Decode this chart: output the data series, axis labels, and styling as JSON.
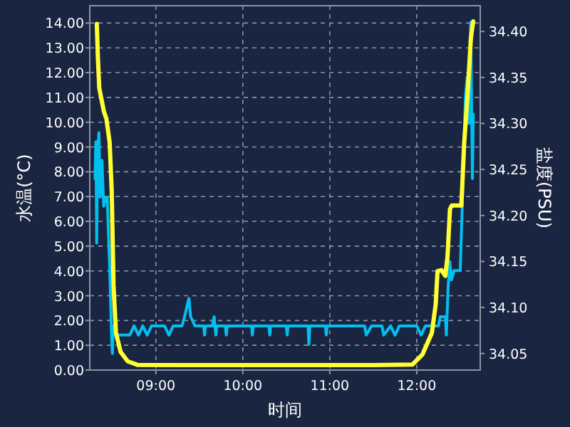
{
  "chart_data": {
    "type": "line",
    "xlabel": "时间",
    "ylabel": "水温(°C)",
    "y2label": "盐度(PSU)",
    "grid": true,
    "marker": "none",
    "line_style": "solid",
    "xlim": [
      8.24,
      12.73
    ],
    "xticks": [
      {
        "value": 9,
        "label": "09:00"
      },
      {
        "value": 10,
        "label": "10:00"
      },
      {
        "value": 11,
        "label": "11:00"
      },
      {
        "value": 12,
        "label": "12:00"
      }
    ],
    "ylim": [
      0,
      14.7
    ],
    "yticks": [
      {
        "value": 0,
        "label": "0.00"
      },
      {
        "value": 1,
        "label": "1.00"
      },
      {
        "value": 2,
        "label": "2.00"
      },
      {
        "value": 3,
        "label": "3.00"
      },
      {
        "value": 4,
        "label": "4.00"
      },
      {
        "value": 5,
        "label": "5.00"
      },
      {
        "value": 6,
        "label": "6.00"
      },
      {
        "value": 7,
        "label": "7.00"
      },
      {
        "value": 8,
        "label": "8.00"
      },
      {
        "value": 9,
        "label": "9.00"
      },
      {
        "value": 10,
        "label": "10.00"
      },
      {
        "value": 11,
        "label": "11.00"
      },
      {
        "value": 12,
        "label": "12.00"
      },
      {
        "value": 13,
        "label": "13.00"
      },
      {
        "value": 14,
        "label": "14.00"
      }
    ],
    "y2lim": [
      34.032,
      34.428
    ],
    "y2ticks": [
      {
        "value": 34.05,
        "label": "34.05"
      },
      {
        "value": 34.1,
        "label": "34.10"
      },
      {
        "value": 34.15,
        "label": "34.15"
      },
      {
        "value": 34.2,
        "label": "34.20"
      },
      {
        "value": 34.25,
        "label": "34.25"
      },
      {
        "value": 34.3,
        "label": "34.30"
      },
      {
        "value": 34.35,
        "label": "34.35"
      },
      {
        "value": 34.4,
        "label": "34.40"
      }
    ],
    "series": [
      {
        "color": "#00c0f0",
        "axis": "y2",
        "x": [
          8.3,
          8.31,
          8.32,
          8.33,
          8.345,
          8.36,
          8.38,
          8.4,
          8.42,
          8.44,
          8.47,
          8.49,
          8.5,
          8.51,
          8.53,
          8.6,
          8.7,
          8.75,
          8.8,
          8.85,
          8.9,
          8.95,
          9.1,
          9.15,
          9.2,
          9.3,
          9.33,
          9.38,
          9.4,
          9.45,
          9.55,
          9.56,
          9.57,
          9.65,
          9.67,
          9.69,
          9.7,
          9.8,
          9.81,
          9.82,
          10.1,
          10.11,
          10.12,
          10.3,
          10.31,
          10.32,
          10.5,
          10.51,
          10.52,
          10.75,
          10.76,
          10.77,
          10.95,
          10.96,
          10.97,
          11.4,
          11.42,
          11.48,
          11.6,
          11.62,
          11.7,
          11.75,
          11.8,
          12.0,
          12.05,
          12.1,
          12.25,
          12.27,
          12.33,
          12.34,
          12.36,
          12.38,
          12.4,
          12.43,
          12.5,
          12.52,
          12.56,
          12.58,
          12.6,
          12.62,
          12.64,
          12.65
        ],
        "values": [
          34.24,
          34.28,
          34.17,
          34.27,
          34.29,
          34.22,
          34.26,
          34.21,
          34.22,
          34.22,
          34.14,
          34.07,
          34.05,
          34.08,
          34.07,
          34.07,
          34.07,
          34.08,
          34.07,
          34.08,
          34.07,
          34.08,
          34.08,
          34.07,
          34.08,
          34.08,
          34.09,
          34.11,
          34.09,
          34.08,
          34.08,
          34.07,
          34.08,
          34.08,
          34.09,
          34.07,
          34.08,
          34.08,
          34.07,
          34.08,
          34.08,
          34.07,
          34.08,
          34.08,
          34.07,
          34.08,
          34.08,
          34.07,
          34.08,
          34.08,
          34.06,
          34.08,
          34.08,
          34.07,
          34.08,
          34.08,
          34.07,
          34.08,
          34.08,
          34.07,
          34.08,
          34.07,
          34.08,
          34.08,
          34.07,
          34.08,
          34.08,
          34.09,
          34.09,
          34.07,
          34.12,
          34.15,
          34.13,
          34.14,
          34.14,
          34.2,
          34.33,
          34.35,
          34.3,
          34.41,
          34.24,
          34.31
        ]
      },
      {
        "color": "#ffff33",
        "x": [
          8.321,
          8.333,
          8.349,
          8.403,
          8.431,
          8.469,
          8.492,
          8.513,
          8.541,
          8.595,
          8.677,
          8.787,
          9.5,
          10.5,
          11.5,
          11.95,
          12.066,
          12.174,
          12.218,
          12.239,
          12.284,
          12.328,
          12.354,
          12.382,
          12.403,
          12.513,
          12.546,
          12.584,
          12.623,
          12.649
        ],
        "values": [
          13.97,
          12.63,
          11.38,
          10.42,
          10.14,
          9.18,
          7.26,
          3.42,
          1.5,
          0.73,
          0.35,
          0.21,
          0.2,
          0.2,
          0.2,
          0.22,
          0.63,
          1.5,
          2.65,
          3.99,
          4.03,
          3.8,
          4.57,
          6.49,
          6.64,
          6.64,
          9.18,
          11.09,
          13.4,
          14.07
        ]
      }
    ]
  }
}
